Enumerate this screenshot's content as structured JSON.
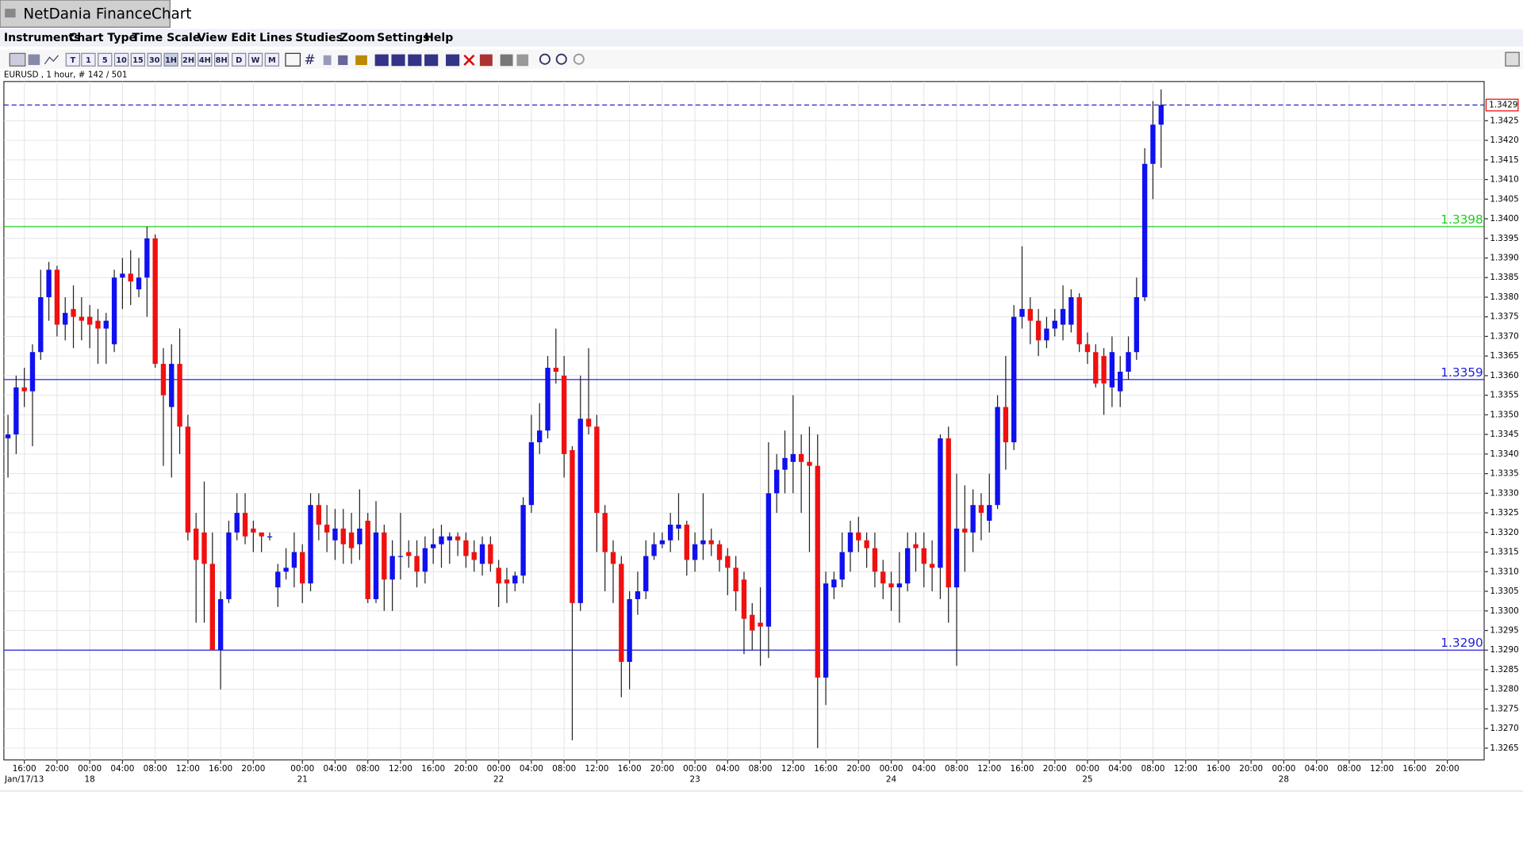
{
  "window": {
    "title": "NetDania FinanceChart"
  },
  "menu": [
    "Instruments",
    "Chart Type",
    "Time Scale",
    "View",
    "Edit",
    "Lines",
    "Studies",
    "Zoom",
    "Settings",
    "Help"
  ],
  "toolbar": {
    "buttons": [
      "T",
      "1",
      "5",
      "10",
      "15",
      "30",
      "1H",
      "2H",
      "4H",
      "8H",
      "D",
      "W",
      "M"
    ]
  },
  "chart_data": {
    "type": "candlestick",
    "title": "EURUSD , 1 hour, # 142 / 501",
    "up_color": "#1010f0",
    "down_color": "#f01010",
    "grid": true,
    "series": {
      "open": [
        1.3344,
        1.3345,
        1.3357,
        1.3356,
        1.3366,
        1.338,
        1.3387,
        1.3373,
        1.3377,
        1.3375,
        1.3375,
        1.3374,
        1.3372,
        1.3368,
        1.3385,
        1.3386,
        1.3382,
        1.3385,
        1.3395,
        1.3363,
        1.3352,
        1.3363,
        1.3347,
        1.3321,
        1.332,
        1.3312,
        1.329,
        1.3303,
        1.332,
        1.3325,
        1.3321,
        1.332,
        1.3319,
        1.3306,
        1.331,
        1.3311,
        1.3315,
        1.3307,
        1.3327,
        1.3322,
        1.3318,
        1.3321,
        1.332,
        1.3317,
        1.3323,
        1.3303,
        1.332,
        1.3308,
        1.3314,
        1.3315,
        1.3314,
        1.331,
        1.3316,
        1.3317,
        1.3318,
        1.3319,
        1.3318,
        1.3315,
        1.3312,
        1.3317,
        1.3311,
        1.3308,
        1.3307,
        1.3309,
        1.3327,
        1.3343,
        1.3346,
        1.3362,
        1.336,
        1.3341,
        1.3302,
        1.3349,
        1.3347,
        1.3325,
        1.3315,
        1.3312,
        1.3287,
        1.3303,
        1.3305,
        1.3314,
        1.3317,
        1.3318,
        1.3321,
        1.3322,
        1.3313,
        1.3317,
        1.3318,
        1.3317,
        1.3314,
        1.3311,
        1.3308,
        1.3299,
        1.3297,
        1.3296,
        1.333,
        1.3336,
        1.3338,
        1.334,
        1.3338,
        1.3337,
        1.3283,
        1.3306,
        1.3308,
        1.3315,
        1.332,
        1.3318,
        1.3316,
        1.331,
        1.3307,
        1.3306,
        1.3307,
        1.3317,
        1.3316,
        1.3312,
        1.3311,
        1.3344,
        1.3306,
        1.3321,
        1.332,
        1.3327,
        1.3323,
        1.3327,
        1.3352,
        1.3343,
        1.3375,
        1.3377,
        1.3374,
        1.3369,
        1.3372,
        1.3373,
        1.3373,
        1.338,
        1.3368,
        1.3366,
        1.3365,
        1.3357,
        1.3356,
        1.3361,
        1.3366,
        1.338,
        1.3414,
        1.3424
      ],
      "high": [
        1.335,
        1.336,
        1.3362,
        1.3368,
        1.3387,
        1.3389,
        1.3388,
        1.338,
        1.3383,
        1.338,
        1.3378,
        1.3377,
        1.3376,
        1.3387,
        1.339,
        1.3392,
        1.339,
        1.3398,
        1.3396,
        1.3367,
        1.3368,
        1.3372,
        1.335,
        1.3325,
        1.3333,
        1.332,
        1.3305,
        1.3323,
        1.333,
        1.333,
        1.3323,
        1.332,
        1.332,
        1.3312,
        1.3316,
        1.332,
        1.3317,
        1.333,
        1.333,
        1.3327,
        1.3326,
        1.3326,
        1.3325,
        1.3331,
        1.3325,
        1.3328,
        1.3322,
        1.3318,
        1.3325,
        1.3318,
        1.3318,
        1.3319,
        1.3321,
        1.3322,
        1.332,
        1.332,
        1.332,
        1.3318,
        1.3319,
        1.3319,
        1.3313,
        1.3311,
        1.331,
        1.3329,
        1.335,
        1.3353,
        1.3365,
        1.3372,
        1.3365,
        1.3342,
        1.336,
        1.3367,
        1.335,
        1.3327,
        1.3318,
        1.3314,
        1.3305,
        1.331,
        1.3318,
        1.332,
        1.332,
        1.3325,
        1.333,
        1.3323,
        1.332,
        1.333,
        1.3321,
        1.3318,
        1.3316,
        1.3314,
        1.331,
        1.3302,
        1.3306,
        1.3343,
        1.334,
        1.3346,
        1.3355,
        1.3345,
        1.3347,
        1.3345,
        1.331,
        1.331,
        1.332,
        1.3323,
        1.3324,
        1.332,
        1.332,
        1.3313,
        1.331,
        1.3315,
        1.332,
        1.332,
        1.332,
        1.3318,
        1.3345,
        1.3347,
        1.3335,
        1.3332,
        1.3331,
        1.333,
        1.3335,
        1.3355,
        1.3365,
        1.3378,
        1.3393,
        1.338,
        1.3377,
        1.3375,
        1.3377,
        1.3383,
        1.3382,
        1.3381,
        1.3371,
        1.3368,
        1.3367,
        1.337,
        1.3365,
        1.337,
        1.3385,
        1.3418,
        1.343,
        1.3433
      ],
      "low": [
        1.3334,
        1.334,
        1.3352,
        1.3342,
        1.3364,
        1.3374,
        1.337,
        1.3369,
        1.3367,
        1.3369,
        1.3367,
        1.3363,
        1.3363,
        1.3366,
        1.3377,
        1.3378,
        1.338,
        1.3375,
        1.3362,
        1.3337,
        1.3334,
        1.334,
        1.3318,
        1.3297,
        1.3297,
        1.329,
        1.328,
        1.3302,
        1.3318,
        1.3317,
        1.3315,
        1.3315,
        1.3318,
        1.3301,
        1.3308,
        1.3306,
        1.3302,
        1.3305,
        1.3318,
        1.3315,
        1.3313,
        1.3312,
        1.3312,
        1.3313,
        1.3302,
        1.3302,
        1.33,
        1.33,
        1.3308,
        1.3311,
        1.3306,
        1.3307,
        1.3312,
        1.3311,
        1.3312,
        1.3314,
        1.3311,
        1.331,
        1.3309,
        1.331,
        1.3301,
        1.3302,
        1.3305,
        1.3307,
        1.3325,
        1.334,
        1.3344,
        1.3358,
        1.3334,
        1.3267,
        1.33,
        1.3345,
        1.3315,
        1.3305,
        1.3302,
        1.3278,
        1.328,
        1.3299,
        1.3303,
        1.3313,
        1.3316,
        1.3315,
        1.3318,
        1.3309,
        1.331,
        1.3313,
        1.3314,
        1.331,
        1.3304,
        1.33,
        1.3289,
        1.329,
        1.3286,
        1.3288,
        1.3325,
        1.333,
        1.333,
        1.3325,
        1.3315,
        1.3265,
        1.3276,
        1.3303,
        1.3306,
        1.331,
        1.3315,
        1.3311,
        1.3306,
        1.3303,
        1.33,
        1.3297,
        1.3305,
        1.331,
        1.3306,
        1.3305,
        1.3303,
        1.3297,
        1.3286,
        1.331,
        1.3315,
        1.3318,
        1.332,
        1.3326,
        1.3336,
        1.3341,
        1.3372,
        1.3368,
        1.3365,
        1.3367,
        1.337,
        1.3369,
        1.3371,
        1.3366,
        1.3363,
        1.3357,
        1.335,
        1.3352,
        1.3352,
        1.3359,
        1.3364,
        1.3379,
        1.3405,
        1.3413
      ],
      "close": [
        1.3345,
        1.3357,
        1.3356,
        1.3366,
        1.338,
        1.3387,
        1.3373,
        1.3376,
        1.3375,
        1.3374,
        1.3373,
        1.3372,
        1.3374,
        1.3385,
        1.3386,
        1.3384,
        1.3385,
        1.3395,
        1.3363,
        1.3355,
        1.3363,
        1.3347,
        1.332,
        1.3313,
        1.3312,
        1.329,
        1.3303,
        1.332,
        1.3325,
        1.3319,
        1.332,
        1.3319,
        1.3319,
        1.331,
        1.3311,
        1.3315,
        1.3307,
        1.3327,
        1.3322,
        1.332,
        1.3321,
        1.3317,
        1.3316,
        1.3321,
        1.3303,
        1.332,
        1.3308,
        1.3314,
        1.3314,
        1.3314,
        1.331,
        1.3316,
        1.3317,
        1.3319,
        1.3319,
        1.3318,
        1.3314,
        1.3313,
        1.3317,
        1.3312,
        1.3307,
        1.3307,
        1.3309,
        1.3327,
        1.3343,
        1.3346,
        1.3362,
        1.3361,
        1.334,
        1.3302,
        1.3349,
        1.3347,
        1.3325,
        1.3315,
        1.3312,
        1.3287,
        1.3303,
        1.3305,
        1.3314,
        1.3317,
        1.3318,
        1.3322,
        1.3322,
        1.3313,
        1.3317,
        1.3318,
        1.3317,
        1.3313,
        1.3311,
        1.3305,
        1.3298,
        1.3295,
        1.3296,
        1.333,
        1.3336,
        1.3339,
        1.334,
        1.3338,
        1.3337,
        1.3283,
        1.3307,
        1.3308,
        1.3315,
        1.332,
        1.3318,
        1.3316,
        1.331,
        1.3307,
        1.3306,
        1.3307,
        1.3316,
        1.3316,
        1.3312,
        1.3311,
        1.3344,
        1.3306,
        1.3321,
        1.332,
        1.3327,
        1.3325,
        1.3327,
        1.3352,
        1.3343,
        1.3375,
        1.3377,
        1.3374,
        1.3369,
        1.3372,
        1.3374,
        1.3377,
        1.338,
        1.3368,
        1.3366,
        1.3358,
        1.3358,
        1.3366,
        1.3361,
        1.3366,
        1.338,
        1.3414,
        1.3424,
        1.3429
      ]
    },
    "levels": [
      {
        "value": 1.3398,
        "label": "1.3398",
        "color": "#22cc22"
      },
      {
        "value": 1.3359,
        "label": "1.3359",
        "color": "#2020e0"
      },
      {
        "value": 1.329,
        "label": "1.3290",
        "color": "#2020e0"
      }
    ],
    "last_price": {
      "value": 1.3429,
      "label": "1.3429",
      "color": "#2020c0"
    },
    "xlim": [
      -0.5,
      180.5
    ],
    "ylim": [
      1.3262,
      1.3435
    ],
    "yticks": [
      1.3265,
      {
        "value": 1.327,
        "label": "1.3270"
      },
      1.3275,
      {
        "value": 1.328,
        "label": "1.3280"
      },
      1.3285,
      {
        "value": 1.329,
        "label": "1.3290"
      },
      1.3295,
      {
        "value": 1.33,
        "label": "1.3300"
      },
      1.3305,
      {
        "value": 1.331,
        "label": "1.3310"
      },
      1.3315,
      {
        "value": 1.332,
        "label": "1.3320"
      },
      1.3325,
      {
        "value": 1.333,
        "label": "1.3330"
      },
      1.3335,
      {
        "value": 1.334,
        "label": "1.3340"
      },
      1.3345,
      {
        "value": 1.335,
        "label": "1.3350"
      },
      1.3355,
      {
        "value": 1.336,
        "label": "1.3360"
      },
      1.3365,
      {
        "value": 1.337,
        "label": "1.3370"
      },
      1.3375,
      {
        "value": 1.338,
        "label": "1.3380"
      },
      1.3385,
      {
        "value": 1.339,
        "label": "1.3390"
      },
      1.3395,
      {
        "value": 1.34,
        "label": "1.3400"
      },
      1.3405,
      {
        "value": 1.341,
        "label": "1.3410"
      },
      1.3415,
      {
        "value": 1.342,
        "label": "1.3420"
      },
      1.3425
    ],
    "xticks": [
      {
        "value": 2,
        "label": "16:00"
      },
      {
        "value": 6,
        "label": "20:00"
      },
      {
        "value": 10,
        "label": "00:00"
      },
      {
        "value": 14,
        "label": "04:00"
      },
      {
        "value": 18,
        "label": "08:00"
      },
      {
        "value": 22,
        "label": "12:00"
      },
      {
        "value": 26,
        "label": "16:00"
      },
      {
        "value": 30,
        "label": "20:00"
      },
      {
        "value": 36,
        "label": "00:00"
      },
      {
        "value": 40,
        "label": "04:00"
      },
      {
        "value": 44,
        "label": "08:00"
      },
      {
        "value": 48,
        "label": "12:00"
      },
      {
        "value": 52,
        "label": "16:00"
      },
      {
        "value": 56,
        "label": "20:00"
      },
      {
        "value": 60,
        "label": "00:00"
      },
      {
        "value": 64,
        "label": "04:00"
      },
      {
        "value": 68,
        "label": "08:00"
      },
      {
        "value": 72,
        "label": "12:00"
      },
      {
        "value": 76,
        "label": "16:00"
      },
      {
        "value": 80,
        "label": "20:00"
      },
      {
        "value": 84,
        "label": "00:00"
      },
      {
        "value": 88,
        "label": "04:00"
      },
      {
        "value": 92,
        "label": "08:00"
      },
      {
        "value": 96,
        "label": "12:00"
      },
      {
        "value": 100,
        "label": "16:00"
      },
      {
        "value": 104,
        "label": "20:00"
      },
      {
        "value": 108,
        "label": "00:00"
      },
      {
        "value": 112,
        "label": "04:00"
      },
      {
        "value": 116,
        "label": "08:00"
      },
      {
        "value": 120,
        "label": "12:00"
      },
      {
        "value": 124,
        "label": "16:00"
      },
      {
        "value": 128,
        "label": "20:00"
      },
      {
        "value": 132,
        "label": "00:00"
      },
      {
        "value": 136,
        "label": "04:00"
      },
      {
        "value": 140,
        "label": "08:00"
      },
      {
        "value": 144,
        "label": "12:00"
      },
      {
        "value": 148,
        "label": "16:00"
      },
      {
        "value": 152,
        "label": "20:00"
      },
      {
        "value": 156,
        "label": "00:00"
      },
      {
        "value": 160,
        "label": "04:00"
      },
      {
        "value": 164,
        "label": "08:00"
      },
      {
        "value": 168,
        "label": "12:00"
      },
      {
        "value": 172,
        "label": "16:00"
      },
      {
        "value": 176,
        "label": "20:00"
      }
    ],
    "xdates": [
      {
        "value": 2,
        "label": "Jan/17/13"
      },
      {
        "value": 10,
        "label": "18"
      },
      {
        "value": 36,
        "label": "21"
      },
      {
        "value": 60,
        "label": "22"
      },
      {
        "value": 84,
        "label": "23"
      },
      {
        "value": 108,
        "label": "24"
      },
      {
        "value": 132,
        "label": "25"
      },
      {
        "value": 156,
        "label": "28"
      }
    ]
  }
}
